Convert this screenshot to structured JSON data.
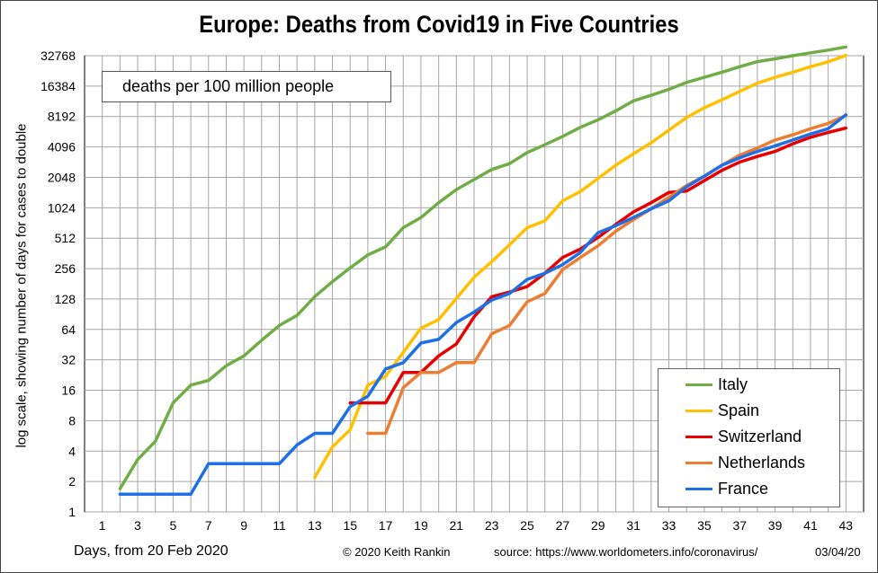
{
  "chart_data": {
    "type": "line",
    "title": "Europe: Deaths from Covid19 in Five Countries",
    "xlabel": "Days, from 20 Feb 2020",
    "ylabel": "log scale, showing number of days for cases to double",
    "annotation": "deaths per 100 million  people",
    "yscale": "log2",
    "ylim": [
      1,
      32768
    ],
    "xlim": [
      0,
      44
    ],
    "x_ticks": [
      1,
      3,
      5,
      7,
      9,
      11,
      13,
      15,
      17,
      19,
      21,
      23,
      25,
      27,
      29,
      31,
      33,
      35,
      37,
      39,
      41,
      43
    ],
    "y_ticks": [
      1,
      2,
      4,
      8,
      16,
      32,
      64,
      128,
      256,
      512,
      1024,
      2048,
      4096,
      8192,
      16384,
      32768
    ],
    "grid": true,
    "legend_position": "bottom-right",
    "series": [
      {
        "name": "Italy",
        "color": "#70ad47",
        "x": [
          2,
          3,
          4,
          5,
          6,
          7,
          8,
          9,
          10,
          11,
          12,
          13,
          14,
          15,
          16,
          17,
          18,
          19,
          20,
          21,
          22,
          23,
          24,
          25,
          26,
          27,
          28,
          29,
          30,
          31,
          32,
          33,
          34,
          35,
          36,
          37,
          38,
          39,
          40,
          41,
          42,
          43
        ],
        "y": [
          1.7,
          3.3,
          5,
          12,
          18,
          20,
          28,
          35,
          50,
          70,
          88,
          135,
          190,
          260,
          350,
          420,
          650,
          820,
          1150,
          1550,
          1950,
          2450,
          2800,
          3600,
          4300,
          5200,
          6400,
          7600,
          9300,
          11700,
          13300,
          15200,
          17800,
          20000,
          22500,
          25500,
          28600,
          30500,
          32800,
          35000,
          37200,
          40000
        ]
      },
      {
        "name": "Spain",
        "color": "#ffc000",
        "x": [
          13,
          14,
          15,
          16,
          17,
          18,
          19,
          20,
          21,
          22,
          23,
          24,
          25,
          26,
          27,
          28,
          29,
          30,
          31,
          32,
          33,
          34,
          35,
          36,
          37,
          38,
          39,
          40,
          41,
          42,
          43
        ],
        "y": [
          2.2,
          4.4,
          6.5,
          18,
          22,
          38,
          66,
          80,
          130,
          210,
          300,
          440,
          650,
          760,
          1200,
          1480,
          2000,
          2700,
          3500,
          4500,
          6000,
          8000,
          10000,
          12000,
          14500,
          17500,
          20000,
          22500,
          25500,
          28500,
          33000
        ]
      },
      {
        "name": "Switzerland",
        "color": "#e60000",
        "x": [
          15,
          16,
          17,
          18,
          19,
          20,
          21,
          22,
          23,
          24,
          25,
          26,
          27,
          28,
          29,
          30,
          31,
          32,
          33,
          34,
          35,
          36,
          37,
          38,
          39,
          40,
          41,
          42,
          43
        ],
        "y": [
          12,
          12,
          12,
          24,
          24,
          35,
          46,
          85,
          135,
          150,
          170,
          230,
          330,
          400,
          520,
          700,
          930,
          1150,
          1450,
          1500,
          1900,
          2400,
          2900,
          3300,
          3700,
          4400,
          5100,
          5700,
          6300
        ]
      },
      {
        "name": "Netherlands",
        "color": "#ed7d31",
        "x": [
          16,
          17,
          18,
          19,
          20,
          21,
          22,
          23,
          24,
          25,
          26,
          27,
          28,
          29,
          30,
          31,
          32,
          33,
          34,
          35,
          36,
          37,
          38,
          39,
          40,
          41,
          42,
          43
        ],
        "y": [
          6,
          6,
          17,
          24,
          24,
          30,
          30,
          58,
          70,
          120,
          145,
          250,
          330,
          430,
          600,
          780,
          1000,
          1300,
          1700,
          2100,
          2700,
          3400,
          4000,
          4800,
          5400,
          6200,
          7000,
          8400
        ]
      },
      {
        "name": "France",
        "color": "#1f6fe5",
        "x": [
          2,
          3,
          4,
          5,
          6,
          7,
          8,
          9,
          10,
          11,
          12,
          13,
          14,
          15,
          16,
          17,
          18,
          19,
          20,
          21,
          22,
          23,
          24,
          25,
          26,
          27,
          28,
          29,
          30,
          31,
          32,
          33,
          34,
          35,
          36,
          37,
          38,
          39,
          40,
          41,
          42,
          43
        ],
        "y": [
          1.5,
          1.5,
          1.5,
          1.5,
          1.5,
          3,
          3,
          3,
          3,
          3,
          4.6,
          6,
          6,
          11,
          14,
          26,
          30,
          47,
          51,
          75,
          95,
          125,
          145,
          200,
          230,
          280,
          370,
          580,
          680,
          820,
          1000,
          1200,
          1650,
          2100,
          2700,
          3200,
          3700,
          4200,
          4800,
          5500,
          6200,
          8500
        ]
      }
    ]
  },
  "footer": {
    "left": "Days, from 20 Feb 2020",
    "copyright": "© 2020  Keith  Rankin",
    "source": "source:  https://www.worldometers.info/coronavirus/",
    "date": "03/04/20"
  }
}
